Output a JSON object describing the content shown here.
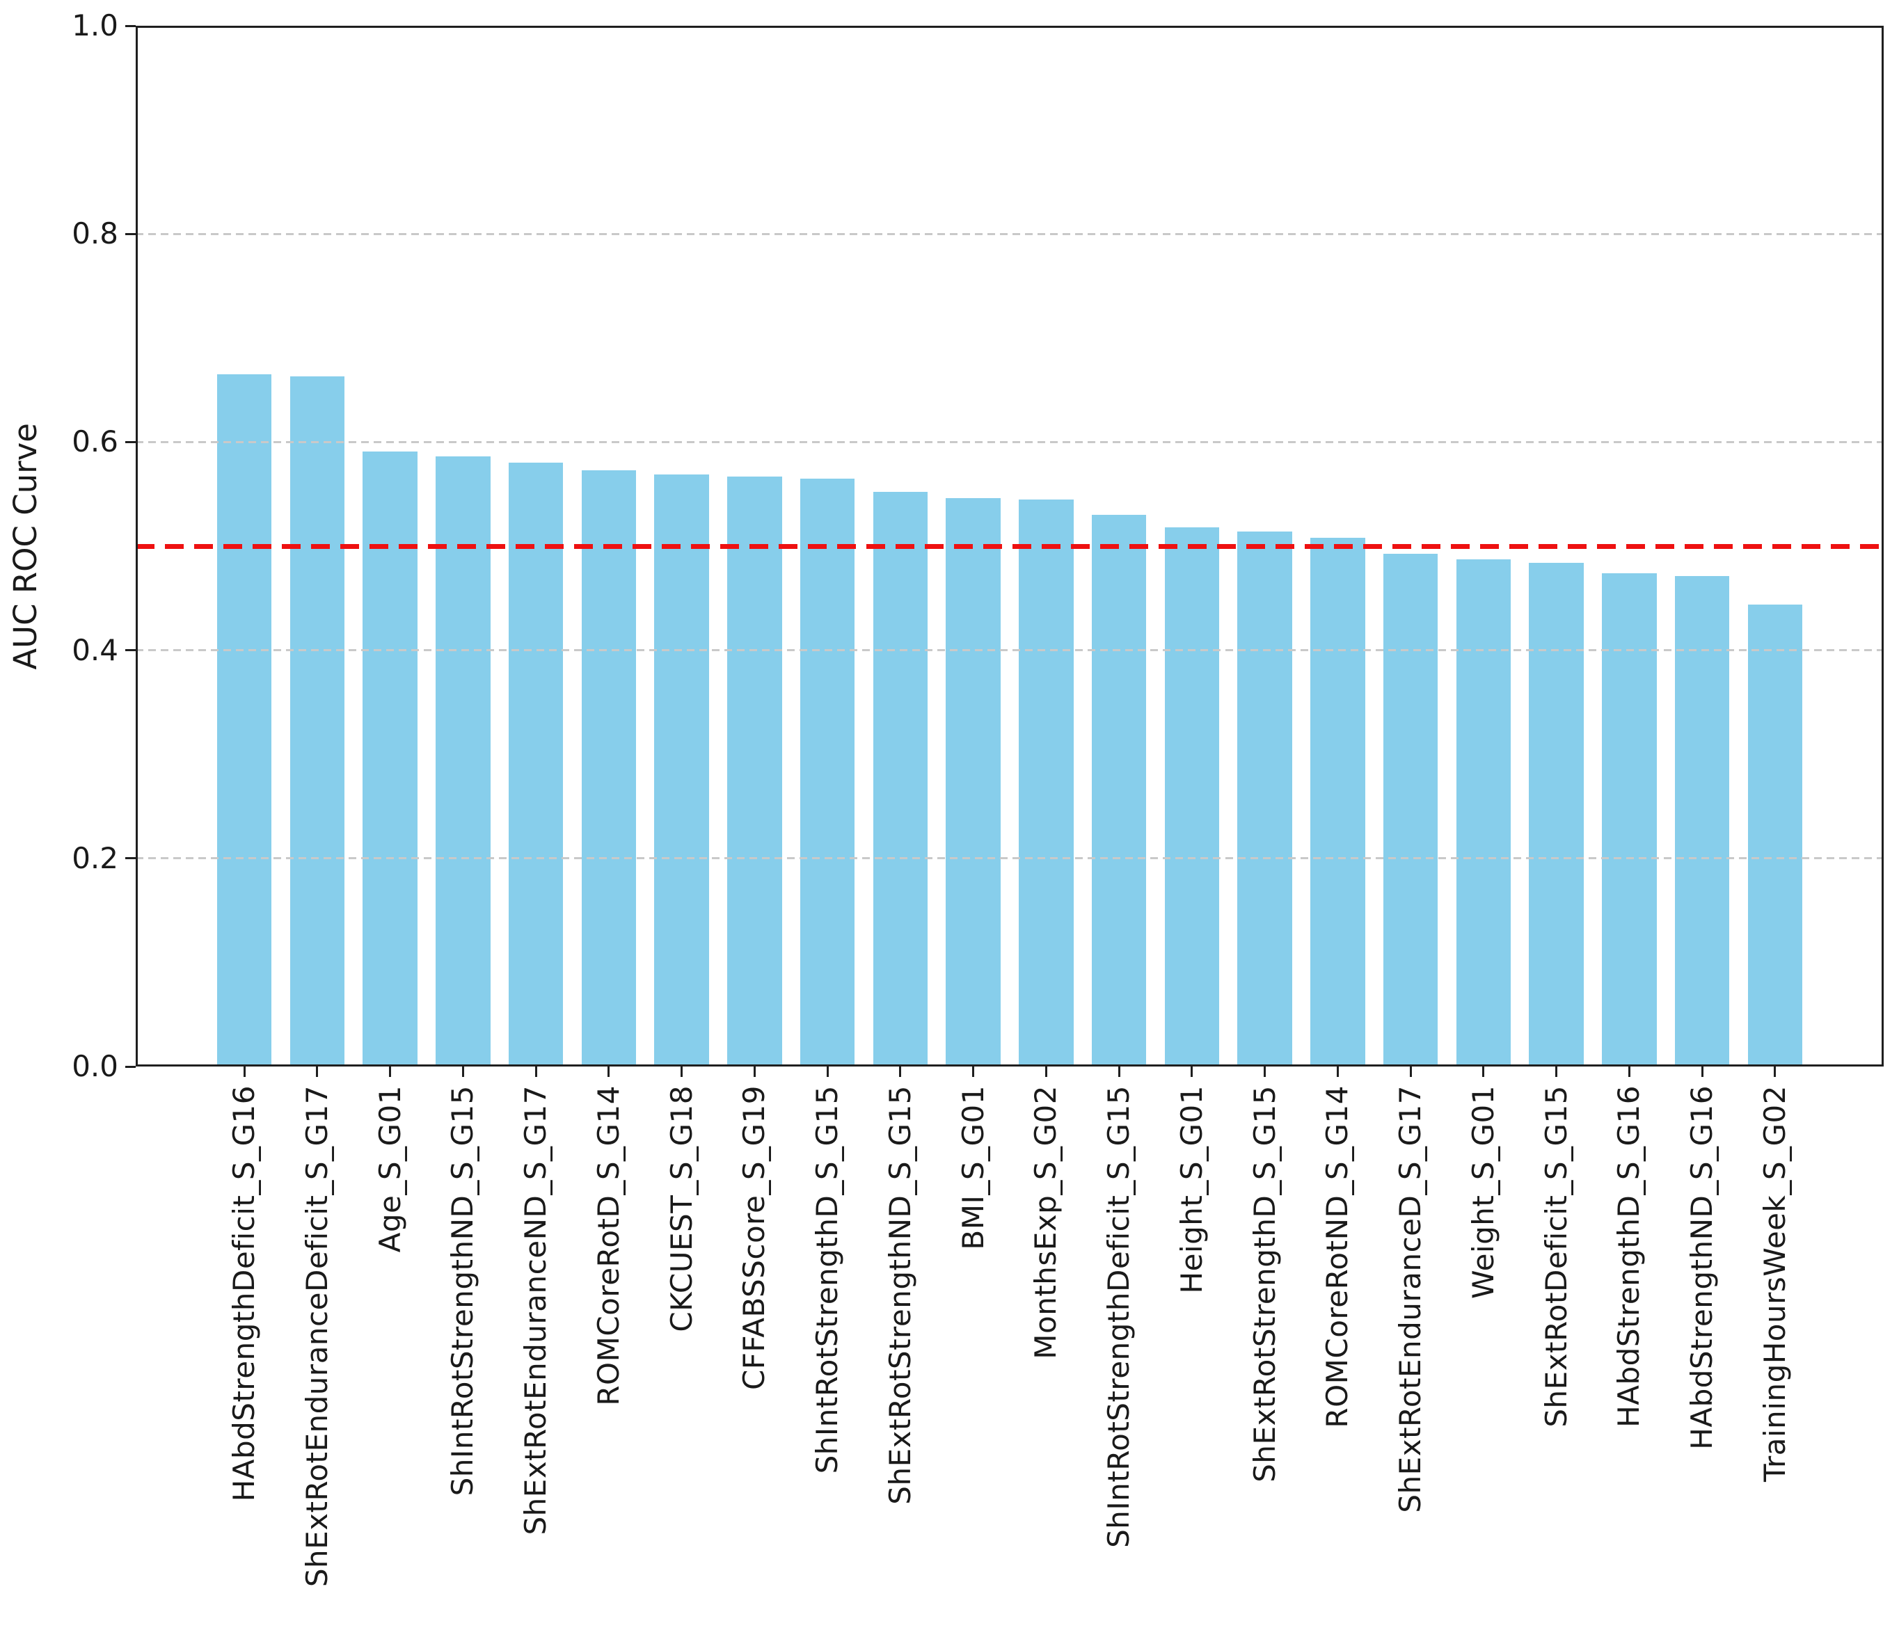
{
  "figure": {
    "background_color": "#ffffff",
    "text_color": "#1a1a1a",
    "spine_color": "#1f1f1f"
  },
  "chart_data": {
    "type": "bar",
    "title": "",
    "xlabel": "",
    "ylabel": "AUC ROC Curve",
    "ylim": [
      0.0,
      1.0
    ],
    "ytick_labels": [
      "0.0",
      "0.2",
      "0.4",
      "0.6",
      "0.8",
      "1.0"
    ],
    "bar_color": "#87ceeb",
    "grid": {
      "axis": "y",
      "style": "dashed",
      "color": "#c9c9c9",
      "at": [
        0.2,
        0.4,
        0.6,
        0.8
      ]
    },
    "reference_line": {
      "value": 0.5,
      "color": "#ee1111",
      "style": "dashed"
    },
    "legend": null,
    "categories": [
      "HAbdStrengthDeficit_S_G16",
      "ShExtRotEnduranceDeficit_S_G17",
      "Age_S_G01",
      "ShIntRotStrengthND_S_G15",
      "ShExtRotEnduranceND_S_G17",
      "ROMCoreRotD_S_G14",
      "CKCUEST_S_G18",
      "CFFABSScore_S_G19",
      "ShIntRotStrengthD_S_G15",
      "ShExtRotStrengthND_S_G15",
      "BMI_S_G01",
      "MonthsExp_S_G02",
      "ShIntRotStrengthDeficit_S_G15",
      "Height_S_G01",
      "ShExtRotStrengthD_S_G15",
      "ROMCoreRotND_S_G14",
      "ShExtRotEnduranceD_S_G17",
      "Weight_S_G01",
      "ShExtRotDeficit_S_G15",
      "HAbdStrengthD_S_G16",
      "HAbdStrengthND_S_G16",
      "TrainingHoursWeek_S_G02"
    ],
    "values": [
      0.665,
      0.663,
      0.591,
      0.586,
      0.58,
      0.573,
      0.569,
      0.567,
      0.565,
      0.552,
      0.546,
      0.545,
      0.53,
      0.518,
      0.514,
      0.508,
      0.493,
      0.487,
      0.484,
      0.474,
      0.471,
      0.444
    ]
  }
}
